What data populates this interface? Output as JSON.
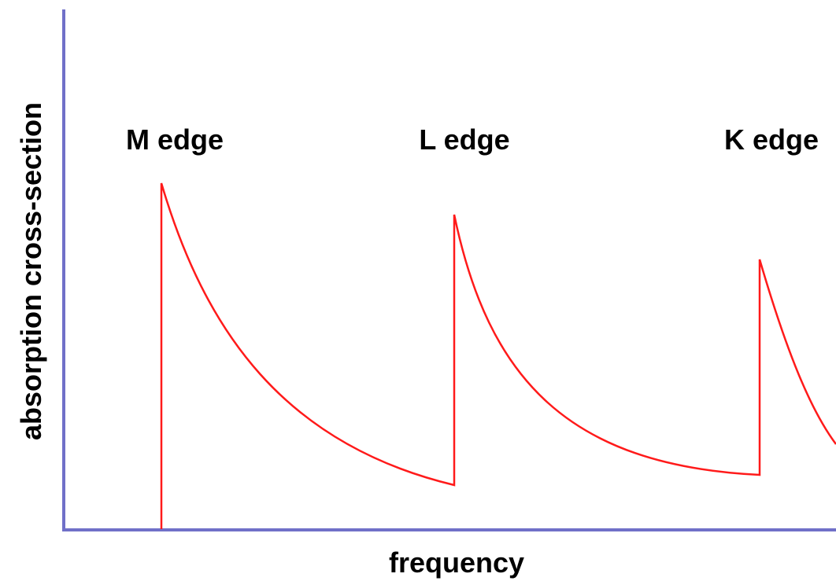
{
  "x_axis_label": "frequency",
  "y_axis_label": "absorption cross-section",
  "edge_labels": [
    "M edge",
    "L edge",
    "K edge"
  ]
}
